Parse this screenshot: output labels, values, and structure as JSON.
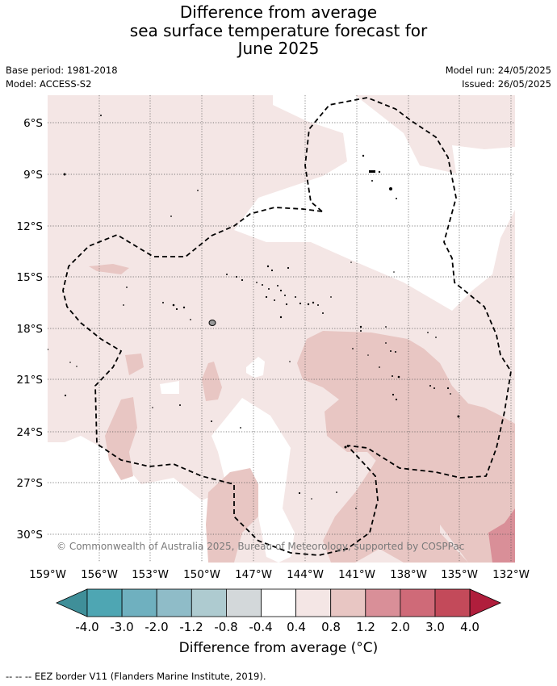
{
  "title": {
    "line1": "Difference from average",
    "line2": "sea surface temperature forecast for",
    "line3": "June 2025"
  },
  "meta": {
    "base_period": "Base period: 1981-2018",
    "model": "Model: ACCESS-S2",
    "model_run": "Model run: 24/05/2025",
    "issued": "Issued: 26/05/2025"
  },
  "map": {
    "lat_labels": [
      "6°S",
      "9°S",
      "12°S",
      "15°S",
      "18°S",
      "21°S",
      "24°S",
      "27°S",
      "30°S"
    ],
    "lon_labels": [
      "159°W",
      "156°W",
      "153°W",
      "150°W",
      "147°W",
      "144°W",
      "141°W",
      "138°W",
      "135°W",
      "132°W"
    ],
    "copyright": "© Commonwealth of Australia 2025, Bureau of Meteorology, supported by COSPPac"
  },
  "colorbar": {
    "tick_labels": [
      "-4.0",
      "-3.0",
      "-2.0",
      "-1.2",
      "-0.8",
      "-0.4",
      "0.4",
      "0.8",
      "1.2",
      "2.0",
      "3.0",
      "4.0"
    ],
    "colors": [
      "#3f8f99",
      "#4ea6b3",
      "#6fb0bf",
      "#8fbcc8",
      "#aecbd0",
      "#d3d8da",
      "#ffffff",
      "#f4e6e5",
      "#e8c6c3",
      "#d98f98",
      "#cf6a78",
      "#c34a5a",
      "#b01e3c"
    ],
    "label": "Difference from average (°C)"
  },
  "legend_footer": "--  --  -- EEZ border V11 (Flanders Marine Institute, 2019)."
}
